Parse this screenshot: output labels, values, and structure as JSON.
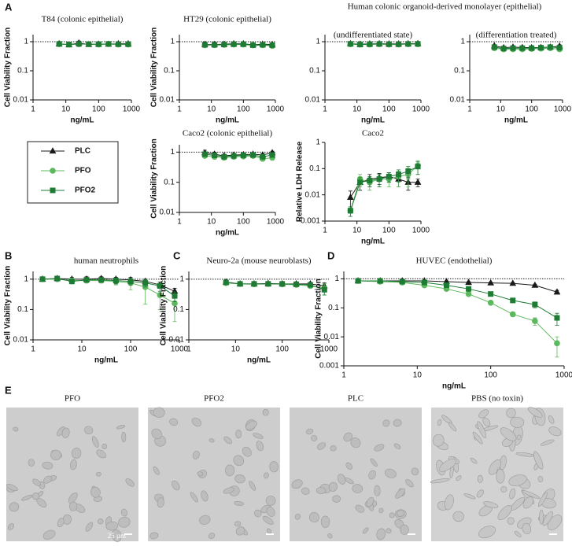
{
  "panel_labels": [
    "A",
    "B",
    "C",
    "D",
    "E"
  ],
  "headings": {
    "organoid": "Human colonic organoid-derived monolayer (epithelial)"
  },
  "images": [
    {
      "label": "PFO"
    },
    {
      "label": "PFO2"
    },
    {
      "label": "PLC"
    },
    {
      "label": "PBS (no toxin)"
    }
  ],
  "scale_bar": "25 µm",
  "chart_data": [
    {
      "type": "line",
      "title": "T84 (colonic epithelial)",
      "x_label": "ng/mL",
      "y_label": "Cell Viability Fraction",
      "xscale": "log",
      "yscale": "log",
      "xlim": [
        1,
        1000
      ],
      "ylim": [
        0.01,
        1.75
      ],
      "xticks": [
        1,
        10,
        100,
        1000
      ],
      "yticks": [
        0.01,
        0.1,
        1
      ],
      "reference_line": 1,
      "x": [
        6.25,
        12.5,
        25,
        50,
        100,
        200,
        400,
        800
      ],
      "series": [
        {
          "name": "PLC",
          "color": "#1a1a1a",
          "marker": "triangle",
          "values": [
            0.85,
            0.78,
            0.9,
            0.8,
            0.82,
            0.82,
            0.85,
            0.85
          ],
          "errors": [
            0.05,
            0.04,
            0.15,
            0.05,
            0.04,
            0.05,
            0.05,
            0.06
          ]
        },
        {
          "name": "PFO",
          "color": "#5cb85c",
          "marker": "circle",
          "values": [
            0.82,
            0.8,
            0.82,
            0.82,
            0.8,
            0.82,
            0.8,
            0.8
          ],
          "errors": [
            0.04,
            0.04,
            0.05,
            0.04,
            0.04,
            0.04,
            0.05,
            0.05
          ]
        },
        {
          "name": "PFO2",
          "color": "#1e7b34",
          "marker": "square",
          "values": [
            0.84,
            0.8,
            0.84,
            0.82,
            0.82,
            0.84,
            0.82,
            0.82
          ],
          "errors": [
            0.04,
            0.04,
            0.05,
            0.04,
            0.04,
            0.04,
            0.05,
            0.05
          ]
        }
      ]
    },
    {
      "type": "line",
      "title": "HT29 (colonic epithelial)",
      "x_label": "ng/mL",
      "y_label": "Cell Viability Fraction",
      "xscale": "log",
      "yscale": "log",
      "xlim": [
        1,
        1000
      ],
      "ylim": [
        0.01,
        1.75
      ],
      "xticks": [
        1,
        10,
        100,
        1000
      ],
      "yticks": [
        0.01,
        0.1,
        1
      ],
      "reference_line": 1,
      "x": [
        6.25,
        12.5,
        25,
        50,
        100,
        200,
        400,
        800
      ],
      "series": [
        {
          "name": "PLC",
          "color": "#1a1a1a",
          "marker": "triangle",
          "values": [
            0.8,
            0.8,
            0.82,
            0.85,
            0.85,
            0.78,
            0.82,
            0.8
          ],
          "errors": [
            0.05,
            0.04,
            0.05,
            0.05,
            0.04,
            0.05,
            0.05,
            0.05
          ]
        },
        {
          "name": "PFO",
          "color": "#5cb85c",
          "marker": "circle",
          "values": [
            0.76,
            0.76,
            0.78,
            0.8,
            0.8,
            0.75,
            0.76,
            0.72
          ],
          "errors": [
            0.04,
            0.04,
            0.04,
            0.04,
            0.04,
            0.04,
            0.04,
            0.04
          ]
        },
        {
          "name": "PFO2",
          "color": "#1e7b34",
          "marker": "square",
          "values": [
            0.78,
            0.78,
            0.8,
            0.82,
            0.82,
            0.76,
            0.78,
            0.76
          ],
          "errors": [
            0.04,
            0.04,
            0.04,
            0.04,
            0.04,
            0.04,
            0.04,
            0.04
          ]
        }
      ]
    },
    {
      "type": "line",
      "title": "(undifferentiated state)",
      "x_label": "ng/mL",
      "y_label": "",
      "xscale": "log",
      "yscale": "log",
      "xlim": [
        1,
        1000
      ],
      "ylim": [
        0.01,
        1.75
      ],
      "xticks": [
        1,
        10,
        100,
        1000
      ],
      "yticks": [
        0.01,
        0.1,
        1
      ],
      "reference_line": 1,
      "x": [
        6.25,
        12.5,
        25,
        50,
        100,
        200,
        400,
        800
      ],
      "series": [
        {
          "name": "PLC",
          "color": "#1a1a1a",
          "marker": "triangle",
          "values": [
            0.85,
            0.82,
            0.84,
            0.85,
            0.84,
            0.84,
            0.85,
            0.86
          ],
          "errors": [
            0.04,
            0.04,
            0.04,
            0.04,
            0.04,
            0.04,
            0.04,
            0.04
          ]
        },
        {
          "name": "PFO",
          "color": "#5cb85c",
          "marker": "circle",
          "values": [
            0.82,
            0.8,
            0.8,
            0.82,
            0.8,
            0.8,
            0.82,
            0.82
          ],
          "errors": [
            0.04,
            0.04,
            0.04,
            0.04,
            0.04,
            0.04,
            0.04,
            0.04
          ]
        },
        {
          "name": "PFO2",
          "color": "#1e7b34",
          "marker": "square",
          "values": [
            0.84,
            0.8,
            0.82,
            0.84,
            0.82,
            0.82,
            0.84,
            0.84
          ],
          "errors": [
            0.04,
            0.04,
            0.04,
            0.04,
            0.04,
            0.04,
            0.04,
            0.04
          ]
        }
      ]
    },
    {
      "type": "line",
      "title": "(differentiation treated)",
      "x_label": "ng/mL",
      "y_label": "",
      "xscale": "log",
      "yscale": "log",
      "xlim": [
        1,
        1000
      ],
      "ylim": [
        0.01,
        1.75
      ],
      "xticks": [
        1,
        10,
        100,
        1000
      ],
      "yticks": [
        0.01,
        0.1,
        1
      ],
      "reference_line": 1,
      "x": [
        6.25,
        12.5,
        25,
        50,
        100,
        200,
        400,
        800
      ],
      "series": [
        {
          "name": "PLC",
          "color": "#1a1a1a",
          "marker": "triangle",
          "values": [
            0.72,
            0.62,
            0.65,
            0.63,
            0.62,
            0.63,
            0.65,
            0.7
          ],
          "errors": [
            0.06,
            0.05,
            0.05,
            0.05,
            0.05,
            0.05,
            0.06,
            0.08
          ]
        },
        {
          "name": "PFO",
          "color": "#5cb85c",
          "marker": "circle",
          "values": [
            0.6,
            0.55,
            0.55,
            0.55,
            0.57,
            0.58,
            0.6,
            0.55
          ],
          "errors": [
            0.05,
            0.04,
            0.04,
            0.04,
            0.04,
            0.05,
            0.06,
            0.08
          ]
        },
        {
          "name": "PFO2",
          "color": "#1e7b34",
          "marker": "square",
          "values": [
            0.65,
            0.58,
            0.6,
            0.6,
            0.6,
            0.62,
            0.65,
            0.62
          ],
          "errors": [
            0.05,
            0.04,
            0.04,
            0.04,
            0.04,
            0.05,
            0.06,
            0.08
          ]
        }
      ]
    },
    {
      "type": "line",
      "title": "Caco2 (colonic epithelial)",
      "x_label": "ng/mL",
      "y_label": "Cell Viability Fraction",
      "xscale": "log",
      "yscale": "log",
      "xlim": [
        1,
        1000
      ],
      "ylim": [
        0.01,
        1.75
      ],
      "xticks": [
        1,
        10,
        100,
        1000
      ],
      "yticks": [
        0.01,
        0.1,
        1
      ],
      "reference_line": 1,
      "x": [
        6.25,
        12.5,
        25,
        50,
        100,
        200,
        400,
        800
      ],
      "series": [
        {
          "name": "PLC",
          "color": "#1a1a1a",
          "marker": "triangle",
          "values": [
            0.95,
            0.85,
            0.75,
            0.8,
            0.82,
            0.85,
            0.8,
            0.95
          ],
          "errors": [
            0.2,
            0.12,
            0.1,
            0.1,
            0.1,
            0.1,
            0.1,
            0.12
          ]
        },
        {
          "name": "PFO",
          "color": "#5cb85c",
          "marker": "circle",
          "values": [
            0.75,
            0.7,
            0.65,
            0.7,
            0.72,
            0.75,
            0.6,
            0.65
          ],
          "errors": [
            0.1,
            0.08,
            0.08,
            0.08,
            0.08,
            0.08,
            0.08,
            0.1
          ]
        },
        {
          "name": "PFO2",
          "color": "#1e7b34",
          "marker": "square",
          "values": [
            0.85,
            0.78,
            0.7,
            0.75,
            0.78,
            0.8,
            0.7,
            0.8
          ],
          "errors": [
            0.1,
            0.08,
            0.08,
            0.08,
            0.08,
            0.08,
            0.08,
            0.1
          ]
        }
      ]
    },
    {
      "type": "line",
      "title": "Caco2",
      "x_label": "ng/mL",
      "y_label": "Relative LDH Release",
      "xscale": "log",
      "yscale": "log",
      "xlim": [
        1,
        1000
      ],
      "ylim": [
        0.001,
        1
      ],
      "xticks": [
        1,
        10,
        100,
        1000
      ],
      "yticks": [
        0.001,
        0.01,
        0.1,
        1
      ],
      "x": [
        6.25,
        12.5,
        25,
        50,
        100,
        200,
        400,
        800
      ],
      "series": [
        {
          "name": "PLC",
          "color": "#1a1a1a",
          "marker": "triangle",
          "values": [
            0.008,
            0.03,
            0.04,
            0.045,
            0.05,
            0.04,
            0.03,
            0.03
          ],
          "errors": [
            0.006,
            0.015,
            0.02,
            0.02,
            0.02,
            0.02,
            0.015,
            0.01
          ]
        },
        {
          "name": "PFO",
          "color": "#5cb85c",
          "marker": "circle",
          "values": [
            0.0025,
            0.04,
            0.03,
            0.04,
            0.04,
            0.05,
            0.06,
            0.13
          ],
          "errors": [
            0.001,
            0.02,
            0.015,
            0.02,
            0.02,
            0.03,
            0.04,
            0.07
          ]
        },
        {
          "name": "PFO2",
          "color": "#1e7b34",
          "marker": "square",
          "values": [
            0.0025,
            0.03,
            0.035,
            0.04,
            0.05,
            0.06,
            0.08,
            0.12
          ],
          "errors": [
            0.001,
            0.015,
            0.015,
            0.02,
            0.02,
            0.03,
            0.04,
            0.06
          ]
        }
      ]
    },
    {
      "type": "line",
      "title": "human neutrophils",
      "x_label": "ng/mL",
      "y_label": "Cell Viability Fraction",
      "xscale": "log",
      "yscale": "log",
      "xlim": [
        1,
        1000
      ],
      "ylim": [
        0.01,
        1.8
      ],
      "xticks": [
        1,
        10,
        100,
        1000
      ],
      "yticks": [
        0.01,
        0.1,
        1
      ],
      "reference_line": 1,
      "x": [
        1.5625,
        3.125,
        6.25,
        12.5,
        25,
        50,
        100,
        200,
        400,
        800
      ],
      "series": [
        {
          "name": "PLC",
          "color": "#1a1a1a",
          "marker": "triangle",
          "values": [
            1,
            1.05,
            1,
            1,
            1.05,
            1,
            0.95,
            0.85,
            0.65,
            0.4
          ],
          "errors": [
            0.1,
            0.15,
            0.15,
            0.2,
            0.15,
            0.15,
            0.2,
            0.15,
            0.15,
            0.1
          ]
        },
        {
          "name": "PFO",
          "color": "#5cb85c",
          "marker": "circle",
          "values": [
            1,
            1,
            0.9,
            0.9,
            0.9,
            0.85,
            0.75,
            0.55,
            0.3,
            0.16
          ],
          "errors": [
            0.1,
            0.12,
            0.15,
            0.15,
            0.15,
            0.2,
            0.3,
            0.4,
            0.2,
            0.12
          ]
        },
        {
          "name": "PFO2",
          "color": "#1e7b34",
          "marker": "square",
          "values": [
            1,
            1.05,
            0.85,
            0.95,
            0.95,
            0.9,
            0.85,
            0.75,
            0.6,
            0.28
          ],
          "errors": [
            0.1,
            0.12,
            0.15,
            0.15,
            0.15,
            0.2,
            0.2,
            0.2,
            0.2,
            0.1
          ]
        }
      ]
    },
    {
      "type": "line",
      "title": "Neuro-2a (mouse neuroblasts)",
      "x_label": "ng/mL",
      "y_label": "Cell Viability Fraction",
      "xscale": "log",
      "yscale": "log",
      "xlim": [
        1,
        1000
      ],
      "ylim": [
        0.01,
        1.8
      ],
      "xticks": [
        1,
        10,
        100,
        1000
      ],
      "yticks": [
        0.01,
        0.1,
        1
      ],
      "reference_line": 1,
      "x": [
        6.25,
        12.5,
        25,
        50,
        100,
        200,
        400,
        800
      ],
      "series": [
        {
          "name": "PLC",
          "color": "#1a1a1a",
          "marker": "triangle",
          "values": [
            0.8,
            0.7,
            0.7,
            0.72,
            0.7,
            0.7,
            0.7,
            0.6
          ],
          "errors": [
            0.05,
            0.05,
            0.05,
            0.05,
            0.05,
            0.05,
            0.08,
            0.15
          ]
        },
        {
          "name": "PFO",
          "color": "#5cb85c",
          "marker": "circle",
          "values": [
            0.75,
            0.7,
            0.68,
            0.7,
            0.68,
            0.65,
            0.6,
            0.5
          ],
          "errors": [
            0.05,
            0.05,
            0.05,
            0.05,
            0.05,
            0.05,
            0.08,
            0.2
          ]
        },
        {
          "name": "PFO2",
          "color": "#1e7b34",
          "marker": "square",
          "values": [
            0.78,
            0.7,
            0.7,
            0.7,
            0.7,
            0.68,
            0.65,
            0.45
          ],
          "errors": [
            0.05,
            0.05,
            0.05,
            0.05,
            0.05,
            0.05,
            0.08,
            0.15
          ]
        }
      ]
    },
    {
      "type": "line",
      "title": "HUVEC (endothelial)",
      "x_label": "ng/mL",
      "y_label": "Cell Viability Fraction",
      "xscale": "log",
      "yscale": "log",
      "xlim": [
        1,
        1000
      ],
      "ylim": [
        0.001,
        1.8
      ],
      "xticks": [
        1,
        10,
        100,
        1000
      ],
      "yticks": [
        0.001,
        0.01,
        0.1,
        1
      ],
      "reference_line": 1,
      "x": [
        1.5625,
        3.125,
        6.25,
        12.5,
        25,
        50,
        100,
        200,
        400,
        800
      ],
      "series": [
        {
          "name": "PLC",
          "color": "#1a1a1a",
          "marker": "triangle",
          "values": [
            0.85,
            0.85,
            0.85,
            0.85,
            0.8,
            0.75,
            0.72,
            0.7,
            0.6,
            0.35
          ],
          "errors": [
            0.05,
            0.05,
            0.05,
            0.05,
            0.05,
            0.05,
            0.05,
            0.05,
            0.05,
            0.05
          ]
        },
        {
          "name": "PFO",
          "color": "#5cb85c",
          "marker": "circle",
          "values": [
            0.85,
            0.8,
            0.75,
            0.6,
            0.45,
            0.3,
            0.15,
            0.06,
            0.035,
            0.006
          ],
          "errors": [
            0.05,
            0.05,
            0.05,
            0.05,
            0.05,
            0.04,
            0.02,
            0.01,
            0.01,
            0.004
          ]
        },
        {
          "name": "PFO2",
          "color": "#1e7b34",
          "marker": "square",
          "values": [
            0.85,
            0.85,
            0.8,
            0.75,
            0.6,
            0.45,
            0.3,
            0.18,
            0.13,
            0.045
          ],
          "errors": [
            0.05,
            0.05,
            0.05,
            0.05,
            0.05,
            0.05,
            0.04,
            0.03,
            0.03,
            0.02
          ]
        }
      ]
    }
  ]
}
